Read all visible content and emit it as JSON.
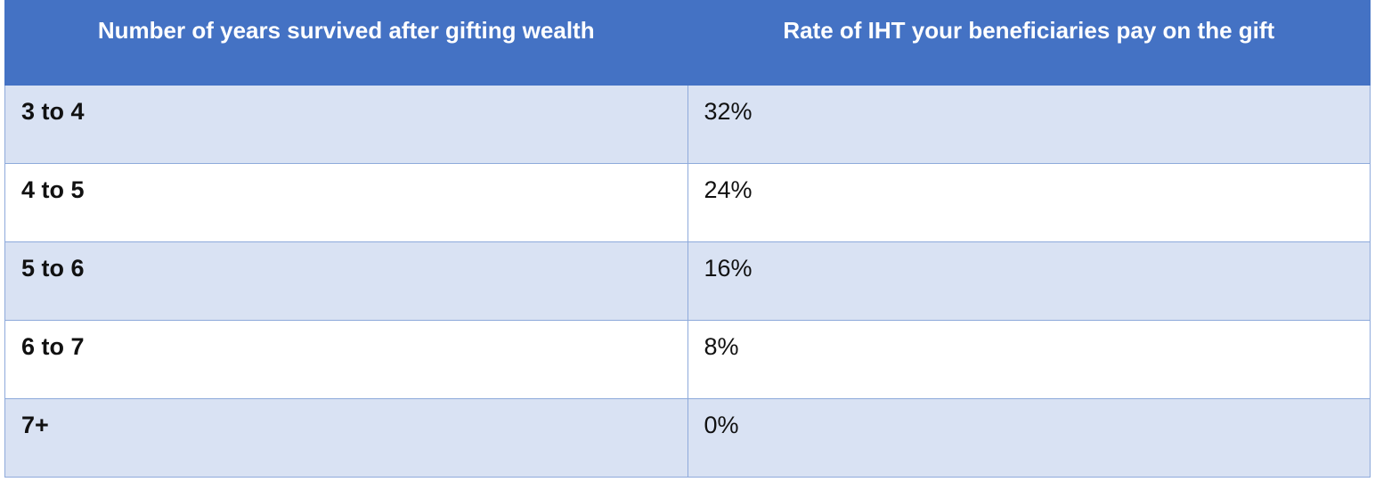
{
  "table": {
    "headers": [
      "Number of years survived after gifting wealth",
      "Rate of IHT your beneficiaries pay on the gift"
    ],
    "rows": [
      [
        "3 to 4",
        "32%"
      ],
      [
        "4 to 5",
        "24%"
      ],
      [
        "5 to 6",
        "16%"
      ],
      [
        "6 to 7",
        "8%"
      ],
      [
        "7+",
        "0%"
      ]
    ]
  }
}
